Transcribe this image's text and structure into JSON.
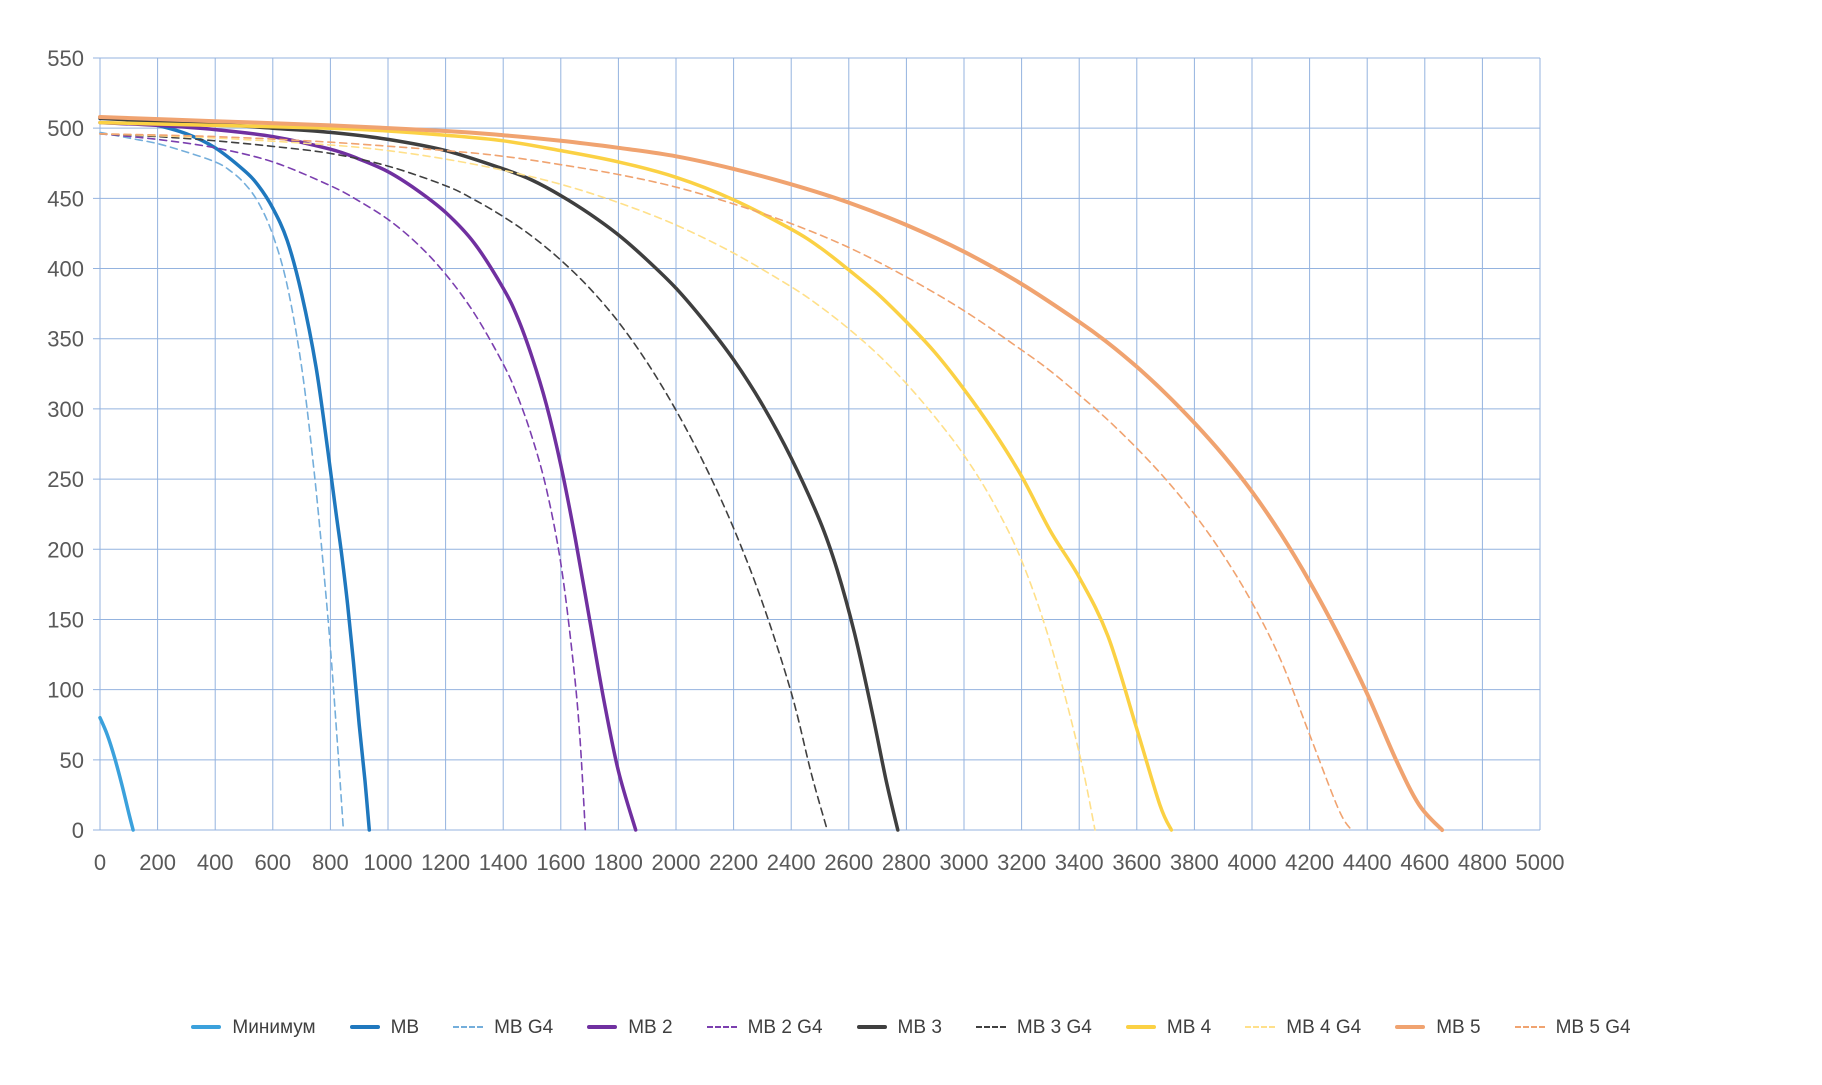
{
  "chart_data": {
    "type": "line",
    "title": "",
    "xlabel": "",
    "ylabel": "",
    "xlim": [
      0,
      5000
    ],
    "ylim": [
      0,
      550
    ],
    "grid": true,
    "grid_color": "#94b3df",
    "axis_text_color": "#595959",
    "legend_position": "bottom",
    "x_ticks": [
      0,
      200,
      400,
      600,
      800,
      1000,
      1200,
      1400,
      1600,
      1800,
      2000,
      2200,
      2400,
      2600,
      2800,
      3000,
      3200,
      3400,
      3600,
      3800,
      4000,
      4200,
      4400,
      4600,
      4800,
      5000
    ],
    "y_ticks": [
      0,
      50,
      100,
      150,
      200,
      250,
      300,
      350,
      400,
      450,
      500,
      550
    ],
    "series": [
      {
        "name": "Минимум",
        "color": "#3ba1dc",
        "dash": false,
        "width": 3.5,
        "points": [
          [
            0,
            80
          ],
          [
            25,
            68
          ],
          [
            50,
            52
          ],
          [
            75,
            33
          ],
          [
            100,
            12
          ],
          [
            115,
            0
          ]
        ]
      },
      {
        "name": "МВ",
        "color": "#1f78be",
        "dash": false,
        "width": 3.5,
        "points": [
          [
            0,
            508
          ],
          [
            100,
            506
          ],
          [
            200,
            502
          ],
          [
            300,
            496
          ],
          [
            400,
            486
          ],
          [
            500,
            470
          ],
          [
            550,
            459
          ],
          [
            600,
            443
          ],
          [
            650,
            420
          ],
          [
            700,
            382
          ],
          [
            750,
            330
          ],
          [
            790,
            272
          ],
          [
            820,
            225
          ],
          [
            840,
            195
          ],
          [
            860,
            160
          ],
          [
            880,
            120
          ],
          [
            900,
            75
          ],
          [
            920,
            35
          ],
          [
            935,
            0
          ]
        ]
      },
      {
        "name": "МВ G4",
        "color": "#74aedb",
        "dash": true,
        "width": 1.6,
        "points": [
          [
            0,
            497
          ],
          [
            100,
            493
          ],
          [
            200,
            489
          ],
          [
            300,
            483
          ],
          [
            400,
            476
          ],
          [
            450,
            470
          ],
          [
            500,
            461
          ],
          [
            550,
            447
          ],
          [
            600,
            424
          ],
          [
            650,
            388
          ],
          [
            700,
            330
          ],
          [
            740,
            262
          ],
          [
            770,
            200
          ],
          [
            800,
            130
          ],
          [
            825,
            60
          ],
          [
            845,
            0
          ]
        ]
      },
      {
        "name": "МВ 2",
        "color": "#7030a0",
        "dash": false,
        "width": 3.5,
        "points": [
          [
            0,
            504
          ],
          [
            200,
            502
          ],
          [
            400,
            499
          ],
          [
            600,
            494
          ],
          [
            800,
            485
          ],
          [
            900,
            478
          ],
          [
            1000,
            469
          ],
          [
            1100,
            456
          ],
          [
            1200,
            440
          ],
          [
            1300,
            418
          ],
          [
            1400,
            386
          ],
          [
            1450,
            365
          ],
          [
            1500,
            337
          ],
          [
            1550,
            303
          ],
          [
            1600,
            260
          ],
          [
            1650,
            208
          ],
          [
            1700,
            150
          ],
          [
            1750,
            92
          ],
          [
            1800,
            42
          ],
          [
            1860,
            0
          ]
        ]
      },
      {
        "name": "МВ 2 G4",
        "color": "#7b3faf",
        "dash": true,
        "width": 1.6,
        "points": [
          [
            0,
            496
          ],
          [
            200,
            492
          ],
          [
            400,
            486
          ],
          [
            600,
            476
          ],
          [
            800,
            459
          ],
          [
            900,
            448
          ],
          [
            1000,
            435
          ],
          [
            1100,
            418
          ],
          [
            1200,
            396
          ],
          [
            1300,
            368
          ],
          [
            1400,
            332
          ],
          [
            1450,
            309
          ],
          [
            1500,
            280
          ],
          [
            1550,
            243
          ],
          [
            1600,
            190
          ],
          [
            1640,
            125
          ],
          [
            1665,
            70
          ],
          [
            1685,
            0
          ]
        ]
      },
      {
        "name": "МВ 3",
        "color": "#3f3f3f",
        "dash": false,
        "width": 3.5,
        "points": [
          [
            0,
            507
          ],
          [
            200,
            505
          ],
          [
            400,
            503
          ],
          [
            600,
            500
          ],
          [
            800,
            497
          ],
          [
            1000,
            492
          ],
          [
            1200,
            484
          ],
          [
            1400,
            471
          ],
          [
            1500,
            463
          ],
          [
            1600,
            452
          ],
          [
            1700,
            439
          ],
          [
            1800,
            424
          ],
          [
            1900,
            406
          ],
          [
            2000,
            386
          ],
          [
            2100,
            362
          ],
          [
            2200,
            335
          ],
          [
            2300,
            303
          ],
          [
            2400,
            265
          ],
          [
            2500,
            220
          ],
          [
            2560,
            185
          ],
          [
            2620,
            140
          ],
          [
            2680,
            85
          ],
          [
            2730,
            35
          ],
          [
            2770,
            0
          ]
        ]
      },
      {
        "name": "МВ 3 G4",
        "color": "#404040",
        "dash": true,
        "width": 1.6,
        "points": [
          [
            0,
            496
          ],
          [
            200,
            494
          ],
          [
            400,
            491
          ],
          [
            600,
            487
          ],
          [
            800,
            482
          ],
          [
            1000,
            473
          ],
          [
            1200,
            459
          ],
          [
            1300,
            449
          ],
          [
            1400,
            437
          ],
          [
            1500,
            423
          ],
          [
            1600,
            406
          ],
          [
            1700,
            386
          ],
          [
            1800,
            362
          ],
          [
            1900,
            333
          ],
          [
            2000,
            299
          ],
          [
            2100,
            260
          ],
          [
            2200,
            215
          ],
          [
            2300,
            162
          ],
          [
            2400,
            98
          ],
          [
            2470,
            40
          ],
          [
            2525,
            0
          ]
        ]
      },
      {
        "name": "МВ 4",
        "color": "#fbd144",
        "dash": false,
        "width": 3.5,
        "points": [
          [
            0,
            504
          ],
          [
            400,
            502
          ],
          [
            800,
            500
          ],
          [
            1000,
            498
          ],
          [
            1200,
            495
          ],
          [
            1400,
            491
          ],
          [
            1600,
            484
          ],
          [
            1800,
            476
          ],
          [
            2000,
            465
          ],
          [
            2200,
            449
          ],
          [
            2400,
            428
          ],
          [
            2500,
            415
          ],
          [
            2600,
            399
          ],
          [
            2700,
            382
          ],
          [
            2800,
            362
          ],
          [
            2900,
            340
          ],
          [
            3000,
            314
          ],
          [
            3100,
            285
          ],
          [
            3200,
            252
          ],
          [
            3300,
            213
          ],
          [
            3400,
            180
          ],
          [
            3500,
            138
          ],
          [
            3600,
            72
          ],
          [
            3680,
            18
          ],
          [
            3720,
            0
          ]
        ]
      },
      {
        "name": "МВ 4 G4",
        "color": "#ffe08a",
        "dash": true,
        "width": 1.6,
        "points": [
          [
            0,
            496
          ],
          [
            400,
            493
          ],
          [
            800,
            488
          ],
          [
            1000,
            484
          ],
          [
            1200,
            478
          ],
          [
            1400,
            470
          ],
          [
            1600,
            460
          ],
          [
            1800,
            447
          ],
          [
            2000,
            431
          ],
          [
            2200,
            411
          ],
          [
            2400,
            387
          ],
          [
            2500,
            373
          ],
          [
            2600,
            357
          ],
          [
            2700,
            339
          ],
          [
            2800,
            318
          ],
          [
            2900,
            294
          ],
          [
            3000,
            267
          ],
          [
            3100,
            234
          ],
          [
            3200,
            192
          ],
          [
            3300,
            133
          ],
          [
            3400,
            55
          ],
          [
            3455,
            0
          ]
        ]
      },
      {
        "name": "МВ 5",
        "color": "#f0a370",
        "dash": false,
        "width": 4,
        "points": [
          [
            0,
            508
          ],
          [
            400,
            505
          ],
          [
            800,
            502
          ],
          [
            1200,
            498
          ],
          [
            1400,
            495
          ],
          [
            1600,
            491
          ],
          [
            1800,
            486
          ],
          [
            2000,
            480
          ],
          [
            2200,
            471
          ],
          [
            2400,
            460
          ],
          [
            2600,
            447
          ],
          [
            2800,
            431
          ],
          [
            3000,
            412
          ],
          [
            3200,
            389
          ],
          [
            3400,
            362
          ],
          [
            3500,
            347
          ],
          [
            3600,
            330
          ],
          [
            3700,
            311
          ],
          [
            3800,
            290
          ],
          [
            3900,
            267
          ],
          [
            4000,
            241
          ],
          [
            4100,
            211
          ],
          [
            4200,
            177
          ],
          [
            4300,
            139
          ],
          [
            4400,
            97
          ],
          [
            4500,
            50
          ],
          [
            4580,
            18
          ],
          [
            4660,
            0
          ]
        ]
      },
      {
        "name": "МВ 5 G4",
        "color": "#f0a370",
        "dash": true,
        "width": 1.6,
        "points": [
          [
            0,
            496
          ],
          [
            400,
            494
          ],
          [
            800,
            490
          ],
          [
            1200,
            484
          ],
          [
            1400,
            480
          ],
          [
            1600,
            474
          ],
          [
            1800,
            467
          ],
          [
            2000,
            458
          ],
          [
            2200,
            446
          ],
          [
            2400,
            432
          ],
          [
            2600,
            415
          ],
          [
            2800,
            394
          ],
          [
            3000,
            370
          ],
          [
            3200,
            342
          ],
          [
            3300,
            327
          ],
          [
            3400,
            310
          ],
          [
            3500,
            292
          ],
          [
            3600,
            272
          ],
          [
            3700,
            250
          ],
          [
            3800,
            225
          ],
          [
            3900,
            196
          ],
          [
            4000,
            162
          ],
          [
            4100,
            121
          ],
          [
            4200,
            68
          ],
          [
            4300,
            15
          ],
          [
            4345,
            0
          ]
        ]
      }
    ]
  }
}
